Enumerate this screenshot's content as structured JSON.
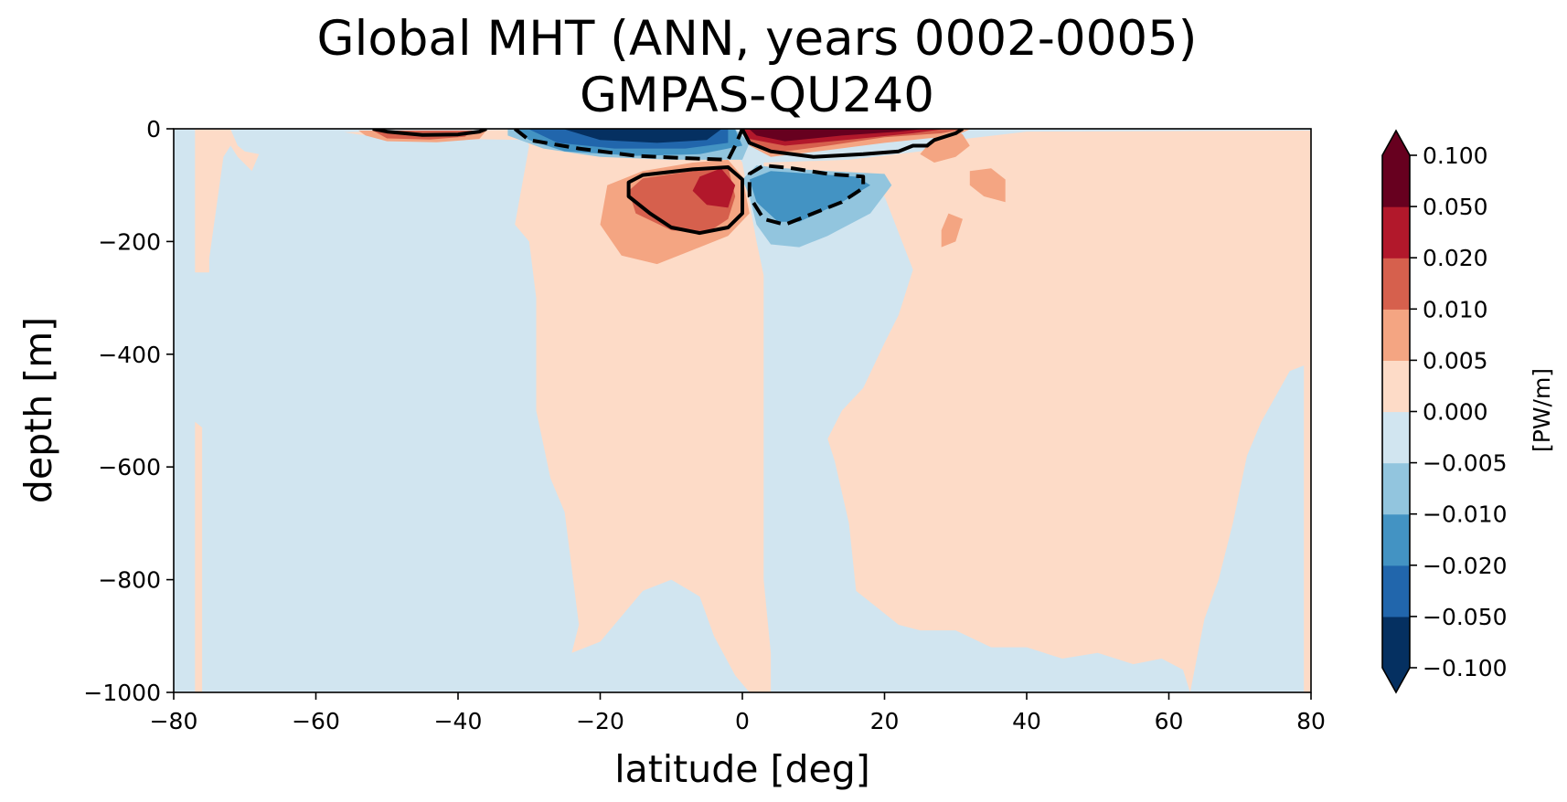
{
  "chart_data": {
    "type": "heatmap",
    "title": "Global MHT (ANN, years 0002-0005)",
    "subtitle": "GMPAS-QU240",
    "xlabel": "latitude [deg]",
    "ylabel": "depth [m]",
    "xlim": [
      -80,
      80
    ],
    "ylim": [
      -1000,
      0
    ],
    "xticks": [
      -80,
      -60,
      -40,
      -20,
      0,
      20,
      40,
      60,
      80
    ],
    "yticks": [
      0,
      -200,
      -400,
      -600,
      -800,
      -1000
    ],
    "colorbar": {
      "label": "[PW/m]",
      "levels": [
        -0.1,
        -0.05,
        -0.02,
        -0.01,
        -0.005,
        0.0,
        0.005,
        0.01,
        0.02,
        0.05,
        0.1
      ],
      "tick_labels": [
        "0.100",
        "0.050",
        "0.020",
        "0.010",
        "0.005",
        "0.000",
        "−0.005",
        "−0.010",
        "−0.020",
        "−0.050",
        "−0.100"
      ],
      "colors": [
        "#053061",
        "#2166ac",
        "#4393c3",
        "#92c5de",
        "#d1e5f0",
        "#fddbc7",
        "#f4a582",
        "#d6604d",
        "#b2182b",
        "#67001f"
      ],
      "extend": "both"
    },
    "contour_levels": [
      -0.01,
      0.01
    ],
    "contour_style": {
      "negative": "dashed",
      "positive": "solid",
      "color": "#000000"
    },
    "grid": false
  }
}
